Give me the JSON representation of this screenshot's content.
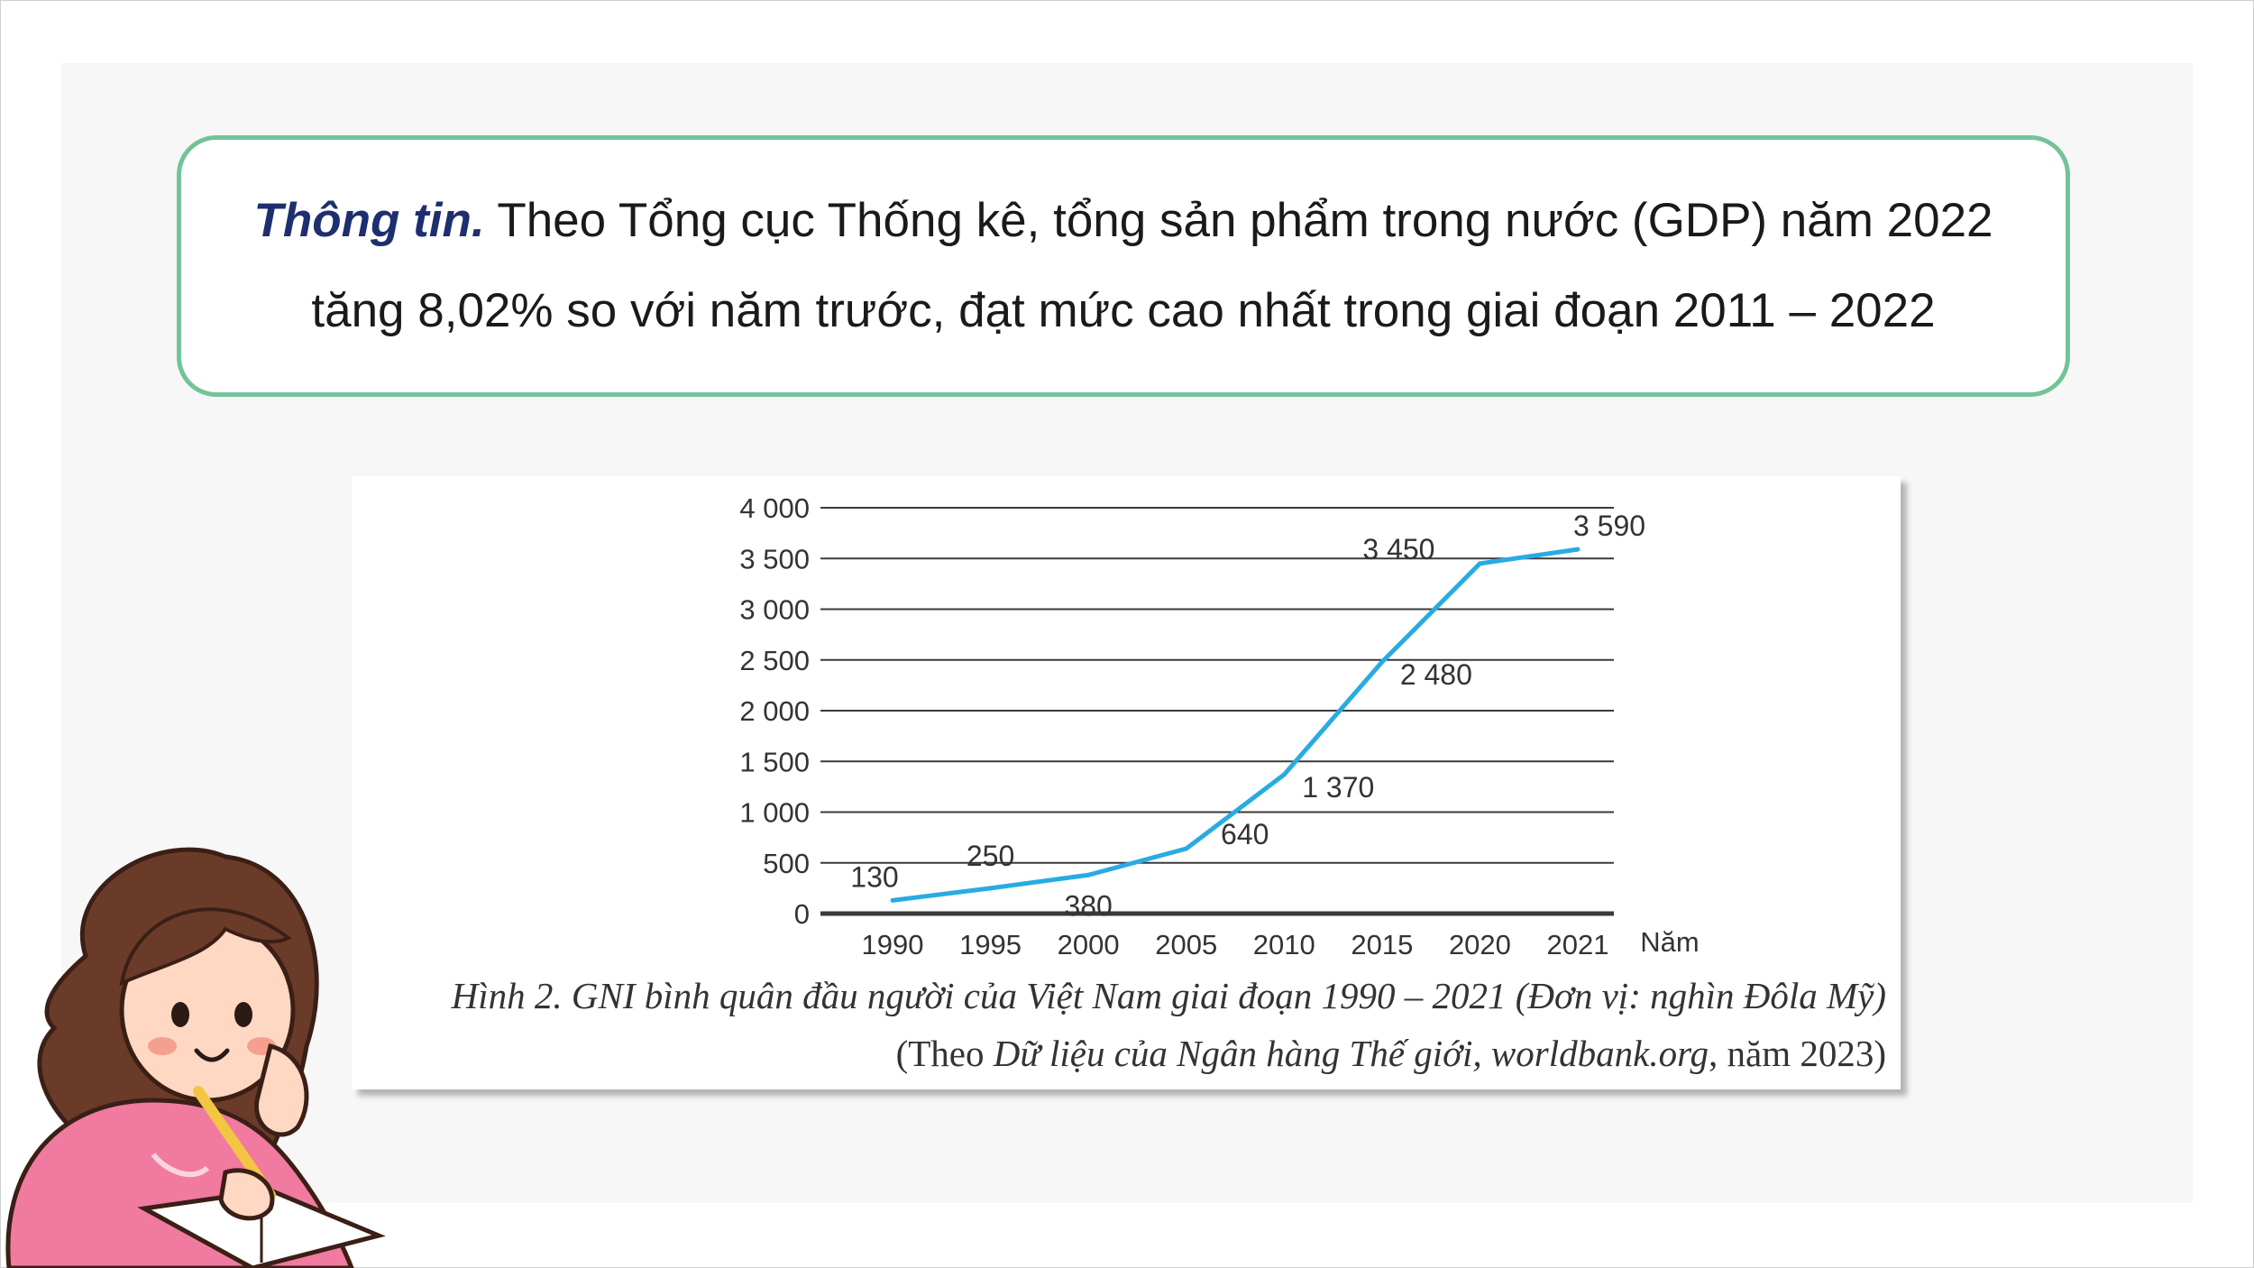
{
  "info": {
    "label": "Thông tin.",
    "text": "Theo Tổng cục Thống kê, tổng sản phẩm trong nước (GDP) năm 2022 tăng 8,02% so với năm trước, đạt mức cao nhất trong giai đoạn 2011 – 2022"
  },
  "chart_data": {
    "type": "line",
    "x": [
      "1990",
      "1995",
      "2000",
      "2005",
      "2010",
      "2015",
      "2020",
      "2021"
    ],
    "series": [
      {
        "values": [
          130,
          250,
          380,
          640,
          1370,
          2480,
          3450,
          3590
        ]
      }
    ],
    "xlabel": "Năm",
    "ylabel": "",
    "ylim": [
      0,
      4000
    ],
    "yticks": [
      "0",
      "500",
      "1 000",
      "1 500",
      "2 000",
      "2 500",
      "3 000",
      "3 500",
      "4 000"
    ],
    "data_labels": [
      "130",
      "250",
      "380",
      "640",
      "1 370",
      "2 480",
      "3 450",
      "3 590"
    ],
    "grid": true,
    "line_color": "#29abe2"
  },
  "caption": {
    "figure": "Hình 2. GNI bình quân đầu người của Việt Nam giai đoạn 1990 – 2021 (Đơn vị: nghìn Đôla Mỹ)",
    "source_open": "(Theo ",
    "source_title": "Dữ liệu của Ngân hàng Thế giới, worldbank.org",
    "source_close": ", năm 2023)"
  },
  "colors": {
    "box_border": "#72c497",
    "label": "#1d2f6f",
    "grid": "#3a3a3a"
  }
}
